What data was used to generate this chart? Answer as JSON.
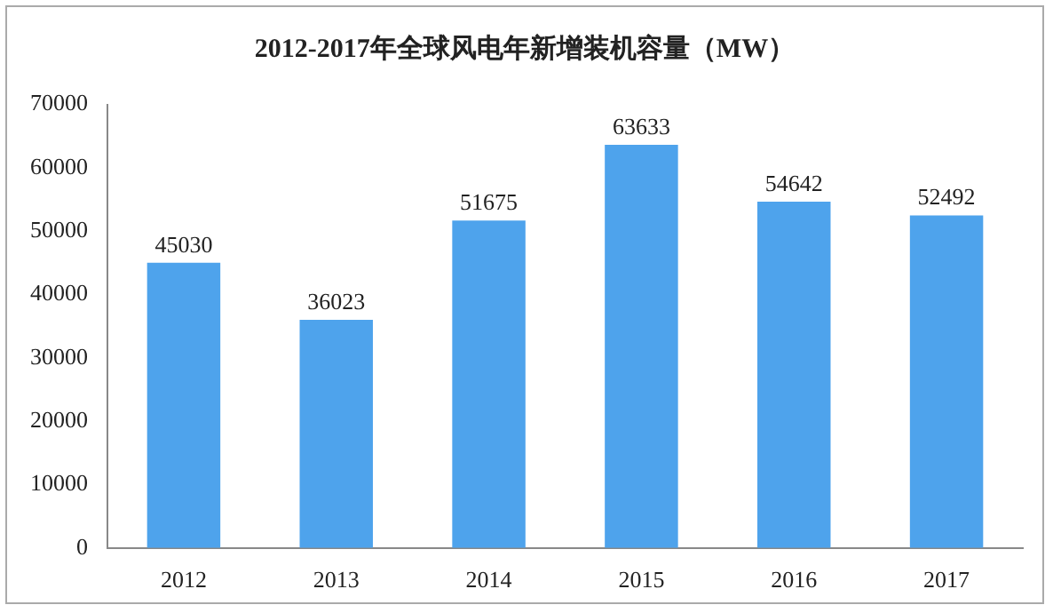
{
  "chart_data": {
    "type": "bar",
    "title": "2012-2017年全球风电年新增装机容量（MW）",
    "categories": [
      "2012",
      "2013",
      "2014",
      "2015",
      "2016",
      "2017"
    ],
    "values": [
      45030,
      36023,
      51675,
      63633,
      54642,
      52492
    ],
    "color": "#4ea3ec",
    "ylim": [
      0,
      70000
    ],
    "yticks": [
      0,
      10000,
      20000,
      30000,
      40000,
      50000,
      60000,
      70000
    ],
    "grid": false,
    "data_labels": true
  }
}
